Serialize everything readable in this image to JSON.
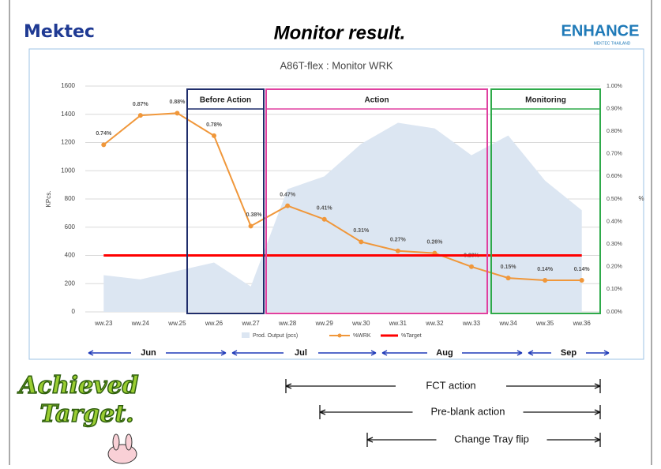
{
  "header": {
    "logo_left": "Mektec",
    "title": "Monitor result.",
    "logo_right": "ENHANCE",
    "logo_right_sub": "MEKTEC THAILAND"
  },
  "chart_data": {
    "type": "combo",
    "title": "A86T-flex : Monitor WRK",
    "y_label": "KPcs.",
    "y2_label": "%",
    "categories": [
      "ww.23",
      "ww.24",
      "ww.25",
      "ww.26",
      "ww.27",
      "ww.28",
      "ww.29",
      "ww.30",
      "ww.31",
      "ww.32",
      "ww.33",
      "ww.34",
      "ww.35",
      "ww.36"
    ],
    "ylim": [
      0,
      1600
    ],
    "yticks": [
      0,
      200,
      400,
      600,
      800,
      1000,
      1200,
      1400,
      1600
    ],
    "y2lim": [
      0,
      1
    ],
    "y2ticks": [
      {
        "value": 0,
        "label": "0.00%"
      },
      {
        "value": 0.1,
        "label": "0.10%"
      },
      {
        "value": 0.2,
        "label": "0.20%"
      },
      {
        "value": 0.3,
        "label": "0.30%"
      },
      {
        "value": 0.4,
        "label": "0.40%"
      },
      {
        "value": 0.5,
        "label": "0.50%"
      },
      {
        "value": 0.6,
        "label": "0.60%"
      },
      {
        "value": 0.7,
        "label": "0.70%"
      },
      {
        "value": 0.8,
        "label": "0.80%"
      },
      {
        "value": 0.9,
        "label": "0.90%"
      },
      {
        "value": 1,
        "label": "1.00%"
      }
    ],
    "grid": true,
    "series": [
      {
        "name": "Prod. Output (pcs)",
        "kind": "area",
        "color": "#dce6f2",
        "values": [
          260,
          230,
          290,
          350,
          180,
          870,
          960,
          1190,
          1340,
          1300,
          1110,
          1250,
          930,
          720
        ]
      },
      {
        "name": "%WRK",
        "kind": "line",
        "axis": "y2",
        "color": "#f0973a",
        "values": [
          0.74,
          0.87,
          0.88,
          0.78,
          0.38,
          0.47,
          0.41,
          0.31,
          0.27,
          0.26,
          0.2,
          0.15,
          0.14,
          0.14
        ],
        "value_labels": [
          "0.74%",
          "0.87%",
          "0.88%",
          "0.78%",
          "0.38%",
          "0.47%",
          "0.41%",
          "0.31%",
          "0.27%",
          "0.26%",
          "0.20%",
          "0.15%",
          "0.14%",
          "0.14%"
        ]
      },
      {
        "name": "%Target",
        "kind": "target",
        "axis": "y2",
        "color": "#ff0000",
        "values": [
          0.25,
          0.25,
          0.25,
          0.25,
          0.25,
          0.25,
          0.25,
          0.25,
          0.25,
          0.25,
          0.25,
          0.25,
          0.25,
          0.25
        ]
      }
    ],
    "annotations": [
      "Before Action",
      "Action",
      "Monitoring"
    ],
    "months": [
      "Jun",
      "Jul",
      "Aug",
      "Sep"
    ]
  },
  "badge": [
    "Achieved",
    "Target."
  ],
  "actions": [
    "FCT action",
    "Pre-blank action",
    "Change Tray flip"
  ]
}
